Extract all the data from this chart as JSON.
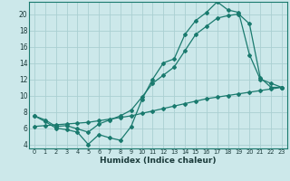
{
  "xlabel": "Humidex (Indice chaleur)",
  "bg_color": "#cce8ea",
  "grid_color": "#aacfd2",
  "line_color": "#1a7a6e",
  "xlim": [
    -0.5,
    23.5
  ],
  "ylim": [
    3.5,
    21.5
  ],
  "yticks": [
    4,
    6,
    8,
    10,
    12,
    14,
    16,
    18,
    20
  ],
  "xticks": [
    0,
    1,
    2,
    3,
    4,
    5,
    6,
    7,
    8,
    9,
    10,
    11,
    12,
    13,
    14,
    15,
    16,
    17,
    18,
    19,
    20,
    21,
    22,
    23
  ],
  "line1_x": [
    0,
    1,
    2,
    3,
    4,
    5,
    6,
    7,
    8,
    9,
    10,
    11,
    12,
    13,
    14,
    15,
    16,
    17,
    18,
    19,
    20,
    21,
    22,
    23
  ],
  "line1_y": [
    7.5,
    6.8,
    6.0,
    5.8,
    5.5,
    4.0,
    5.2,
    4.8,
    4.5,
    6.2,
    9.5,
    12.0,
    14.0,
    14.5,
    17.5,
    19.2,
    20.2,
    21.5,
    20.5,
    20.2,
    15.0,
    12.0,
    11.5,
    11.0
  ],
  "line2_x": [
    0,
    1,
    2,
    3,
    4,
    5,
    6,
    7,
    8,
    9,
    10,
    11,
    12,
    13,
    14,
    15,
    16,
    17,
    18,
    19,
    20,
    21,
    22,
    23
  ],
  "line2_y": [
    7.5,
    7.0,
    6.2,
    6.3,
    5.9,
    5.5,
    6.5,
    7.0,
    7.5,
    8.2,
    9.8,
    11.5,
    12.5,
    13.5,
    15.5,
    17.5,
    18.5,
    19.5,
    19.8,
    20.0,
    18.8,
    12.2,
    11.0,
    11.0
  ],
  "line3_x": [
    0,
    1,
    2,
    3,
    4,
    5,
    6,
    7,
    8,
    9,
    10,
    11,
    12,
    13,
    14,
    15,
    16,
    17,
    18,
    19,
    20,
    21,
    22,
    23
  ],
  "line3_y": [
    6.2,
    6.3,
    6.4,
    6.5,
    6.6,
    6.7,
    6.9,
    7.1,
    7.3,
    7.5,
    7.8,
    8.1,
    8.4,
    8.7,
    9.0,
    9.3,
    9.6,
    9.8,
    10.0,
    10.2,
    10.4,
    10.6,
    10.8,
    11.0
  ]
}
